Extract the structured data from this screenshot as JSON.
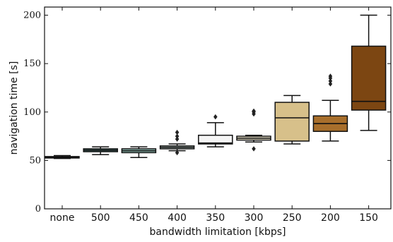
{
  "chart_data": {
    "type": "box",
    "title": "",
    "xlabel": "bandwidth limitation [kbps]",
    "ylabel": "navigation time [s]",
    "ylim": [
      0,
      210
    ],
    "yticks": [
      0,
      50,
      100,
      150,
      200
    ],
    "categories": [
      "none",
      "500",
      "450",
      "400",
      "350",
      "300",
      "250",
      "200",
      "150"
    ],
    "boxes": [
      {
        "category": "none",
        "min": 52,
        "q1": 52.5,
        "median": 53,
        "q3": 54,
        "max": 55,
        "outliers": [],
        "color": "#31504a"
      },
      {
        "category": "500",
        "min": 56,
        "q1": 59,
        "median": 60.5,
        "q3": 62,
        "max": 64,
        "outliers": [],
        "color": "#508179"
      },
      {
        "category": "450",
        "min": 53,
        "q1": 58,
        "median": 60,
        "q3": 62,
        "max": 64,
        "outliers": [],
        "color": "#94c2b8"
      },
      {
        "category": "400",
        "min": 60,
        "q1": 62,
        "median": 63.5,
        "q3": 65,
        "max": 67,
        "outliers": [
          58,
          72,
          75,
          79
        ],
        "color": "#d6ebe3"
      },
      {
        "category": "350",
        "min": 64,
        "q1": 67,
        "median": 68,
        "q3": 76,
        "max": 89,
        "outliers": [
          95
        ],
        "color": "#f5f5f5"
      },
      {
        "category": "300",
        "min": 69,
        "q1": 71,
        "median": 73,
        "q3": 75,
        "max": 76,
        "outliers": [
          62,
          98,
          100,
          101
        ],
        "color": "#f4ecd2"
      },
      {
        "category": "250",
        "min": 67,
        "q1": 70,
        "median": 94,
        "q3": 110,
        "max": 117,
        "outliers": [],
        "color": "#d7c08a"
      },
      {
        "category": "200",
        "min": 70,
        "q1": 80,
        "median": 88,
        "q3": 96,
        "max": 112,
        "outliers": [
          129,
          132,
          135,
          137
        ],
        "color": "#a86f2c"
      },
      {
        "category": "150",
        "min": 81,
        "q1": 102,
        "median": 111,
        "q3": 168,
        "max": 200,
        "outliers": [],
        "color": "#7c4612"
      }
    ],
    "grid": false,
    "legend": "none"
  }
}
